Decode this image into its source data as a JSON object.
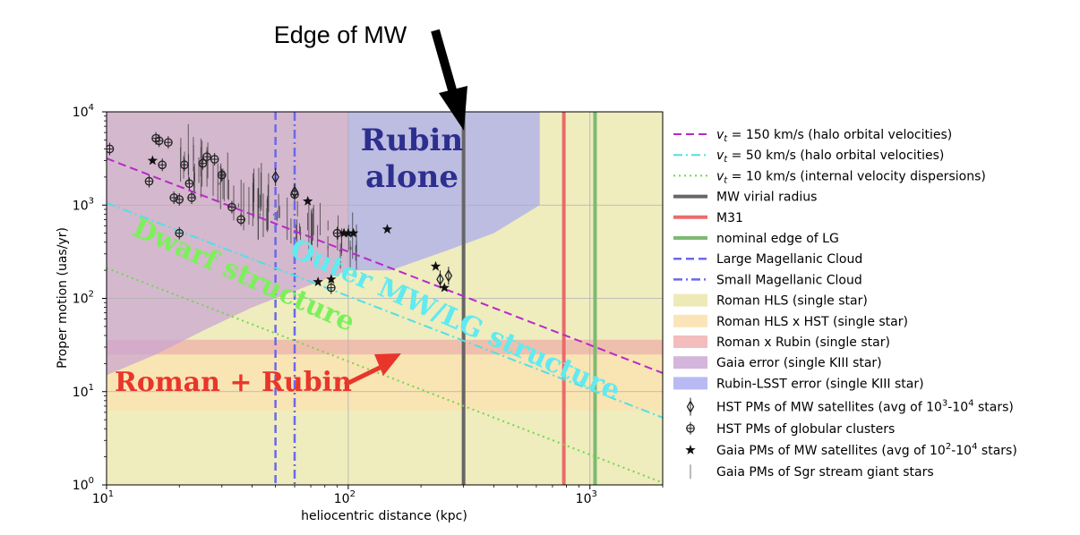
{
  "chart_data": {
    "type": "line",
    "xlabel": "heliocentric distance (kpc)",
    "ylabel": "Proper motion (uas/yr)",
    "xscale": "log",
    "yscale": "log",
    "xlim": [
      10,
      2000
    ],
    "ylim": [
      1,
      10000
    ],
    "x_ticks": [
      {
        "value": 10,
        "base": "10",
        "exp": "1"
      },
      {
        "value": 100,
        "base": "10",
        "exp": "2"
      },
      {
        "value": 1000,
        "base": "10",
        "exp": "3"
      }
    ],
    "y_ticks": [
      {
        "value": 1,
        "base": "10",
        "exp": "0"
      },
      {
        "value": 10,
        "base": "10",
        "exp": "1"
      },
      {
        "value": 100,
        "base": "10",
        "exp": "2"
      },
      {
        "value": 1000,
        "base": "10",
        "exp": "3"
      },
      {
        "value": 10000,
        "base": "10",
        "exp": "4"
      }
    ],
    "grid": true,
    "legend_position": "right",
    "velocity_lines": [
      {
        "vt": 150,
        "color": "#b829c8",
        "dash": "9,5",
        "label_pre": "v",
        "label_sub": "t",
        "label_post": " = 150 km/s (halo orbital velocities)"
      },
      {
        "vt": 50,
        "color": "#52dfe4",
        "dash": "10,4,2,4",
        "label_pre": "v",
        "label_sub": "t",
        "label_post": " = 50 km/s (halo orbital velocities)"
      },
      {
        "vt": 10,
        "color": "#6fd84a",
        "dash": "2,4",
        "label_pre": "v",
        "label_sub": "t",
        "label_post": " = 10 km/s (internal velocity dispersions)"
      }
    ],
    "vertical_lines": [
      {
        "x": 300,
        "color": "#666666",
        "width": 4,
        "dash": "",
        "label": "MW virial radius"
      },
      {
        "x": 780,
        "color": "#ea6b6b",
        "width": 4,
        "dash": "",
        "label": "M31"
      },
      {
        "x": 1050,
        "color": "#7cba72",
        "width": 4,
        "dash": "",
        "label": "nominal edge of LG"
      },
      {
        "x": 50,
        "color": "#6a6ae8",
        "width": 2.5,
        "dash": "9,5",
        "label": "Large Magellanic Cloud"
      },
      {
        "x": 60,
        "color": "#6a6ae8",
        "width": 2.5,
        "dash": "10,4,2,4",
        "label": "Small Magellanic Cloud"
      }
    ],
    "regions": [
      {
        "label": "Roman HLS (single star)",
        "color": "#ece9b3",
        "opacity": 0.85
      },
      {
        "label": "Roman HLS x HST (single star)",
        "color": "#fbe2b0",
        "opacity": 0.8
      },
      {
        "label": "Roman x Rubin (single star)",
        "color": "#eea1a1",
        "opacity": 0.6
      },
      {
        "label": "Gaia error (single KIII star)",
        "color": "#c9a3d3",
        "opacity": 0.7
      },
      {
        "label": "Rubin-LSST error (single KIII star)",
        "color": "#a8a8f0",
        "opacity": 0.7
      }
    ],
    "region_shapes": {
      "roman_hls": [
        [
          10,
          15
        ],
        [
          10,
          10000
        ],
        [
          2000,
          10000
        ],
        [
          2000,
          1
        ],
        [
          10,
          1
        ]
      ],
      "roman_hls_x_hst": [
        [
          10,
          6.3
        ],
        [
          2000,
          6.3
        ],
        [
          2000,
          25
        ],
        [
          10,
          25
        ]
      ],
      "roman_x_rubin": [
        [
          10,
          25
        ],
        [
          2000,
          25
        ],
        [
          2000,
          36
        ],
        [
          10,
          36
        ]
      ],
      "gaia": [
        [
          10,
          10000
        ],
        [
          100,
          10000
        ],
        [
          100,
          200
        ],
        [
          40,
          80
        ],
        [
          25,
          45
        ],
        [
          16,
          25
        ],
        [
          10,
          15
        ]
      ],
      "rubin": [
        [
          100,
          10000
        ],
        [
          620,
          10000
        ],
        [
          620,
          1000
        ],
        [
          400,
          500
        ],
        [
          260,
          330
        ],
        [
          150,
          200
        ],
        [
          100,
          200
        ]
      ]
    },
    "marker_series": [
      {
        "label": "HST PMs of MW satellites (avg of 10",
        "sup": "3",
        "mid": "-10",
        "sup2": "4",
        "tail": " stars)",
        "marker": "diamond",
        "points": [
          [
            50,
            2000
          ],
          [
            60,
            1380
          ],
          [
            240,
            160
          ],
          [
            260,
            175
          ]
        ]
      },
      {
        "label": "HST PMs of globular clusters",
        "sup": "",
        "mid": "",
        "sup2": "",
        "tail": "",
        "marker": "circle",
        "points": [
          [
            10.3,
            4000
          ],
          [
            15,
            1800
          ],
          [
            16,
            5200
          ],
          [
            16.5,
            4900
          ],
          [
            17,
            2700
          ],
          [
            18,
            4700
          ],
          [
            19,
            1200
          ],
          [
            20,
            1150
          ],
          [
            21,
            2700
          ],
          [
            22,
            1700
          ],
          [
            22.5,
            1200
          ],
          [
            20,
            500
          ],
          [
            25,
            2800
          ],
          [
            26,
            3300
          ],
          [
            28,
            3100
          ],
          [
            30,
            2100
          ],
          [
            33,
            950
          ],
          [
            36,
            700
          ],
          [
            60,
            1300
          ],
          [
            85,
            130
          ],
          [
            90,
            500
          ]
        ]
      },
      {
        "label": "Gaia PMs of MW satellites (avg of 10",
        "sup": "2",
        "mid": "-10",
        "sup2": "4",
        "tail": " stars)",
        "marker": "star",
        "points": [
          [
            15.5,
            3000
          ],
          [
            68,
            1100
          ],
          [
            75,
            150
          ],
          [
            85,
            160
          ],
          [
            96,
            500
          ],
          [
            100,
            500
          ],
          [
            105,
            500
          ],
          [
            145,
            550
          ],
          [
            230,
            220
          ],
          [
            250,
            130
          ]
        ]
      },
      {
        "label": "Gaia PMs of Sgr stream giant stars",
        "sup": "",
        "mid": "",
        "sup2": "",
        "tail": "",
        "marker": "errorbar",
        "points": []
      }
    ],
    "annotations": [
      {
        "text": "Edge of MW",
        "color": "#000000"
      },
      {
        "text": "Rubin",
        "color": "#2d2f8f"
      },
      {
        "text": "alone",
        "color": "#2d2f8f"
      },
      {
        "text": "Dwarf structure",
        "color": "#7bf05a"
      },
      {
        "text": "Outer MW/LG structure",
        "color": "#61eaf0"
      },
      {
        "text": "Roman + Rubin",
        "color": "#e8362b"
      }
    ]
  }
}
